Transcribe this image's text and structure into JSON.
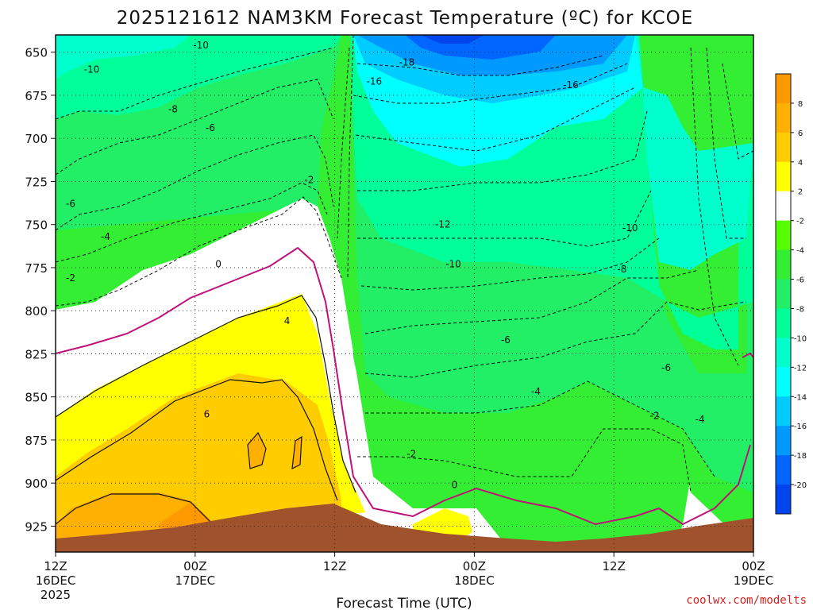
{
  "chart_data": {
    "type": "heatmap",
    "title": "2025121612 NAM3KM Forecast Temperature (ºC) for KCOE",
    "xlabel": "Forecast Time (UTC)",
    "ylabel": "",
    "y_ticks": [
      "650",
      "675",
      "700",
      "725",
      "750",
      "775",
      "800",
      "825",
      "850",
      "875",
      "900",
      "925"
    ],
    "y_values": [
      650,
      675,
      700,
      725,
      750,
      775,
      800,
      825,
      850,
      875,
      900,
      925
    ],
    "ylim": [
      640,
      940
    ],
    "y_inverted": true,
    "x_ticks": [
      {
        "top": "12Z",
        "bottom": "16DEC",
        "extra": "2025"
      },
      {
        "top": "00Z",
        "bottom": "17DEC",
        "extra": ""
      },
      {
        "top": "12Z",
        "bottom": "",
        "extra": ""
      },
      {
        "top": "00Z",
        "bottom": "18DEC",
        "extra": ""
      },
      {
        "top": "12Z",
        "bottom": "",
        "extra": ""
      },
      {
        "top": "00Z",
        "bottom": "19DEC",
        "extra": ""
      }
    ],
    "x_hours": [
      0,
      12,
      24,
      36,
      48,
      60
    ],
    "xlim": [
      0,
      60
    ],
    "legend": {
      "placement": "right",
      "levels": [
        "8",
        "6",
        "4",
        "2",
        "-2",
        "-4",
        "-6",
        "-8",
        "-10",
        "-12",
        "-14",
        "-16",
        "-18",
        "-20"
      ],
      "colors": [
        "#ff9900",
        "#ffb000",
        "#ffcc00",
        "#ffff00",
        "#ffffff",
        "#55ff00",
        "#33ee33",
        "#22ee66",
        "#00ff99",
        "#00ffcc",
        "#00ffff",
        "#00ccff",
        "#0099ff",
        "#0066ff",
        "#0044ee"
      ]
    },
    "contour_labels": [
      {
        "text": "-10",
        "hour": 12.5,
        "p": 646
      },
      {
        "text": "-18",
        "hour": 30.2,
        "p": 656
      },
      {
        "text": "-10",
        "hour": 3.1,
        "p": 660
      },
      {
        "text": "-16",
        "hour": 27.4,
        "p": 667
      },
      {
        "text": "-16",
        "hour": 44.3,
        "p": 669
      },
      {
        "text": "-8",
        "hour": 10.1,
        "p": 683
      },
      {
        "text": "-6",
        "hour": 13.3,
        "p": 694
      },
      {
        "text": "-2",
        "hour": 21.8,
        "p": 724
      },
      {
        "text": "-6",
        "hour": 1.3,
        "p": 738
      },
      {
        "text": "-12",
        "hour": 33.3,
        "p": 750
      },
      {
        "text": "-10",
        "hour": 49.4,
        "p": 752
      },
      {
        "text": "-4",
        "hour": 4.3,
        "p": 757
      },
      {
        "text": "0",
        "hour": 14,
        "p": 773
      },
      {
        "text": "-10",
        "hour": 34.2,
        "p": 773
      },
      {
        "text": "-8",
        "hour": 48.7,
        "p": 776
      },
      {
        "text": "-2",
        "hour": 1.3,
        "p": 781
      },
      {
        "text": "4",
        "hour": 19.9,
        "p": 806
      },
      {
        "text": "-6",
        "hour": 38.7,
        "p": 817
      },
      {
        "text": "-6",
        "hour": 52.5,
        "p": 833
      },
      {
        "text": "-4",
        "hour": 41.3,
        "p": 847
      },
      {
        "text": "6",
        "hour": 13,
        "p": 860
      },
      {
        "text": "-2",
        "hour": 51.5,
        "p": 861
      },
      {
        "text": "-4",
        "hour": 55.4,
        "p": 863
      },
      {
        "text": "-2",
        "hour": 30.6,
        "p": 883
      },
      {
        "text": "0",
        "hour": 34.3,
        "p": 901
      }
    ],
    "source": "coolwx.com/modelts"
  }
}
